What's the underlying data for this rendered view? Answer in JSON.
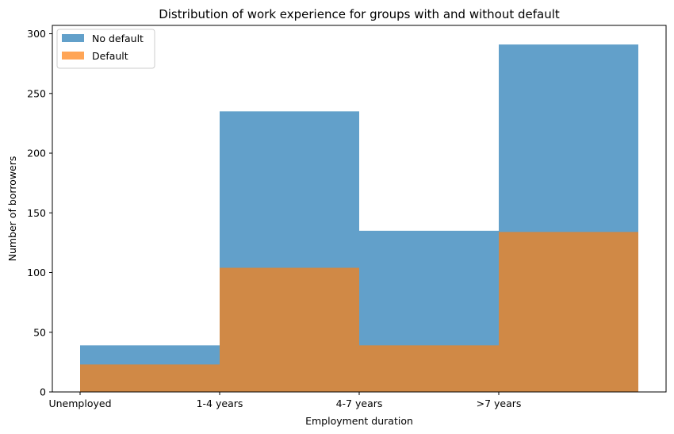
{
  "chart_data": {
    "type": "bar",
    "title": "Distribution of work experience for groups with and without default",
    "xlabel": "Employment duration",
    "ylabel": "Number of borrowers",
    "categories": [
      "Unemployed",
      "1-4 years",
      "4-7 years",
      ">7 years"
    ],
    "yticks": [
      "0",
      "50",
      "100",
      "150",
      "200",
      "250",
      "300"
    ],
    "ylim": [
      0,
      307
    ],
    "grid": false,
    "legend_position": "top-left",
    "overlay": true,
    "series": [
      {
        "name": "No default",
        "color": "#1f77b4",
        "opacity": 0.7,
        "values": [
          39,
          235,
          135,
          291
        ]
      },
      {
        "name": "Default",
        "color": "#ff7f0e",
        "opacity": 0.7,
        "values": [
          23,
          104,
          39,
          134
        ]
      }
    ]
  }
}
